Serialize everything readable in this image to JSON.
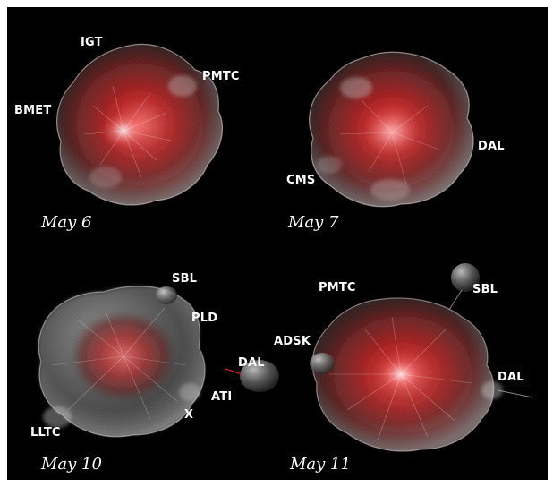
{
  "colors": {
    "background": "#000000",
    "blob_core": "#c41616",
    "blob_shell": "#d9d9d9",
    "label": "#ffffff"
  },
  "panels": [
    {
      "date": "May 6",
      "labels": [
        "IGT",
        "PMTC",
        "BMET"
      ]
    },
    {
      "date": "May 7",
      "labels": [
        "DAL",
        "CMS"
      ]
    },
    {
      "date": "May 10",
      "labels": [
        "SBL",
        "PLD",
        "DAL",
        "ATI",
        "X",
        "LLTC"
      ]
    },
    {
      "date": "May 11",
      "labels": [
        "PMTC",
        "SBL",
        "ADSK",
        "DAL"
      ]
    }
  ]
}
